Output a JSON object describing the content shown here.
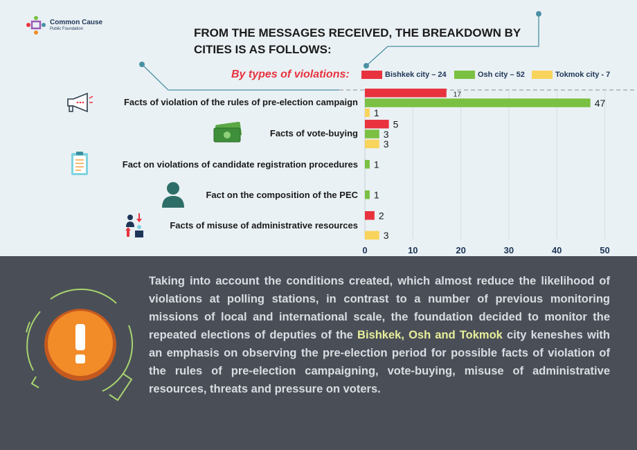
{
  "org": {
    "name": "Common Cause",
    "subtitle": "Public Foundation"
  },
  "header": {
    "title": "FROM THE MESSAGES RECEIVED, THE BREAKDOWN BY CITIES IS AS FOLLOWS:",
    "types_label": "By types of violations:"
  },
  "colors": {
    "bishkek": "#e8333f",
    "osh": "#7bc043",
    "tokmok": "#f9d45c",
    "accent": "#4a90a4",
    "dark_panel": "#4a4f57"
  },
  "chart_data": {
    "type": "bar",
    "orientation": "horizontal",
    "categories": [
      "Facts of violation of the rules of pre-election campaign",
      "Facts of vote-buying",
      "Fact on violations of candidate registration procedures",
      "Fact on the composition of the PEC",
      "Facts of misuse of administrative resources"
    ],
    "series": [
      {
        "name": "Bishkek city – 24",
        "values": [
          17,
          5,
          null,
          null,
          2
        ]
      },
      {
        "name": "Osh city – 52",
        "values": [
          47,
          3,
          1,
          1,
          null
        ]
      },
      {
        "name": "Tokmok city - 7",
        "values": [
          1,
          3,
          null,
          null,
          3
        ]
      }
    ],
    "data_labels": [
      [
        "17",
        "47",
        "1"
      ],
      [
        "5",
        "3",
        "3"
      ],
      [
        "1"
      ],
      [
        "1"
      ],
      [
        "2",
        "3"
      ]
    ],
    "x_ticks": [
      "0",
      "10",
      "20",
      "30",
      "40",
      "50"
    ],
    "xlim": [
      0,
      50
    ],
    "grid": true,
    "legend_position": "top"
  },
  "note": {
    "before": "Taking into account the conditions created, which almost reduce the likelihood of violations at polling stations, in contrast to a number of previous monitoring missions of local and international scale, the foundation decided to monitor the repeated elections of deputies of the ",
    "highlight": "Bishkek, Osh and Tokmok",
    "after": " city keneshes with an emphasis on observing the pre-election period for possible facts of violation of the rules of pre-election campaigning, vote-buying, misuse of administrative resources, threats and pressure on voters."
  },
  "icons": [
    "megaphone-icon",
    "money-icon",
    "clipboard-icon",
    "person-icon",
    "admin-resources-icon",
    "warning-icon"
  ]
}
